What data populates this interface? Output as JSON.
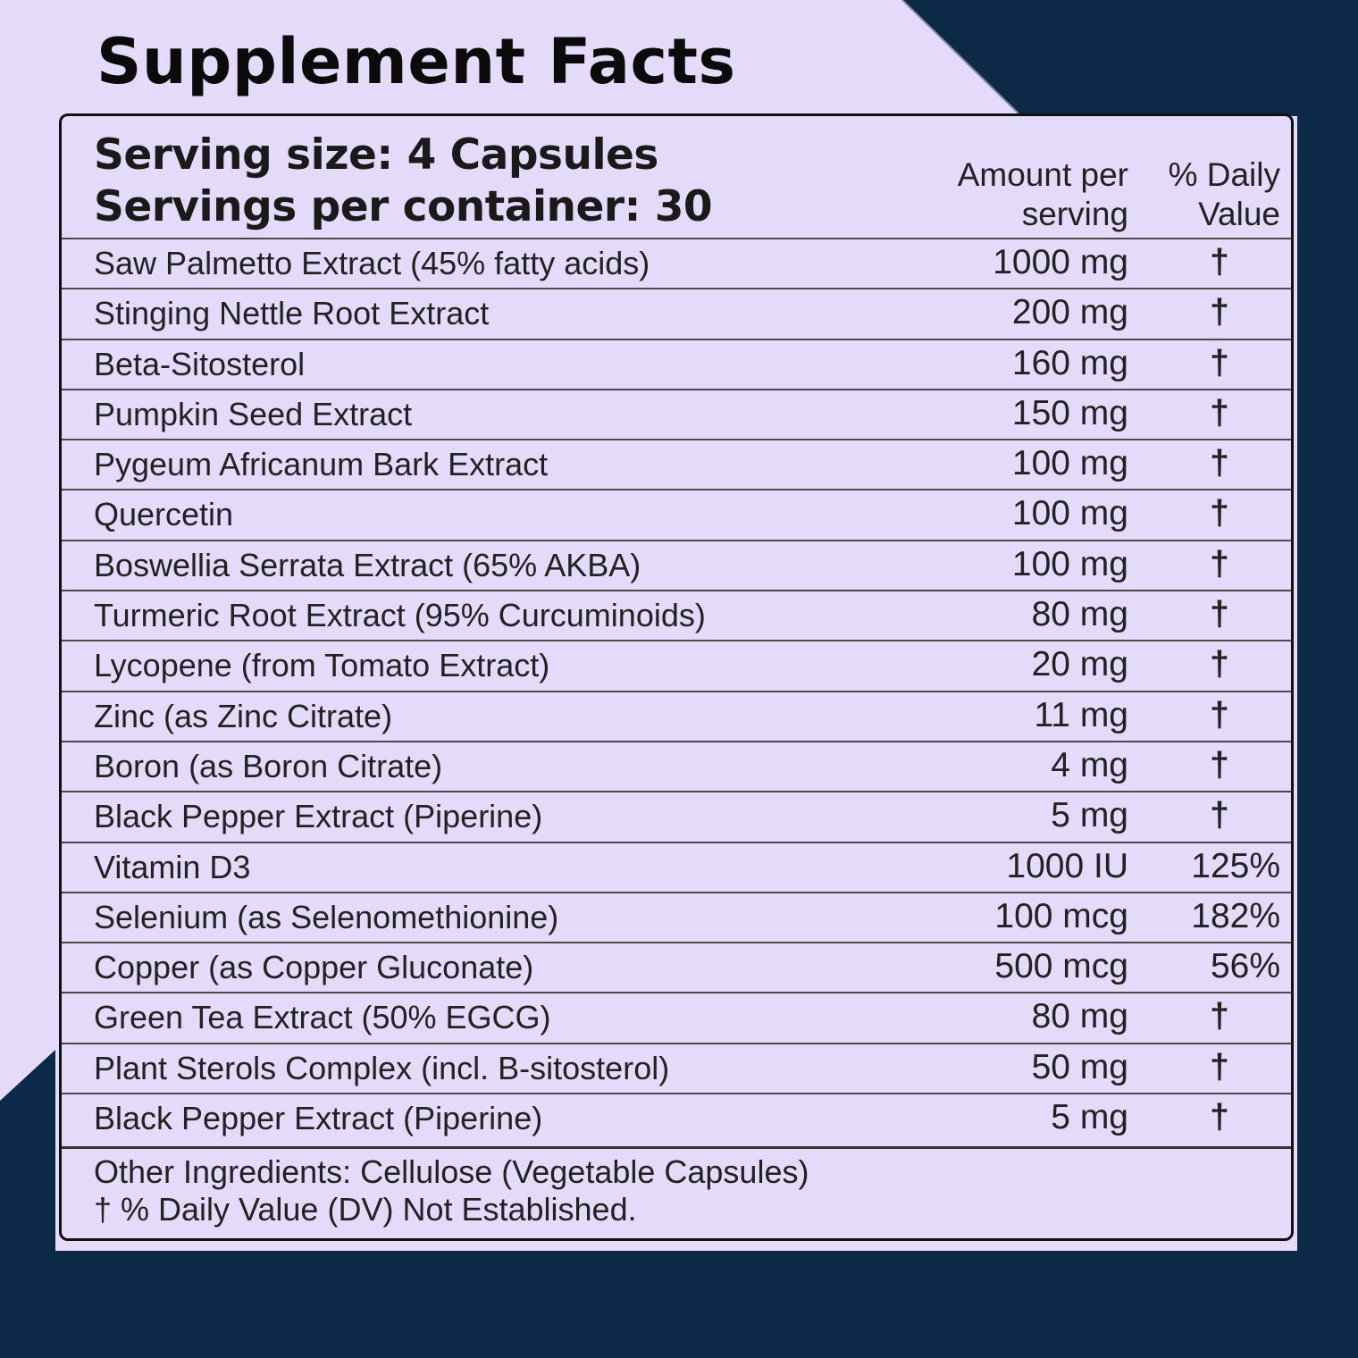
{
  "title": "Supplement Facts",
  "serving_size": "Serving size: 4 Capsules",
  "servings_per_container": "Servings per container: 30",
  "columns": {
    "amount_line1": "Amount per",
    "amount_line2": "serving",
    "dv_line1": "% Daily",
    "dv_line2": "Value"
  },
  "rows": [
    {
      "name": "Saw Palmetto Extract (45% fatty acids)",
      "amount": "1000 mg",
      "dv": "†"
    },
    {
      "name": "Stinging Nettle Root Extract",
      "amount": "200 mg",
      "dv": "†"
    },
    {
      "name": "Beta-Sitosterol",
      "amount": "160 mg",
      "dv": "†"
    },
    {
      "name": "Pumpkin Seed Extract",
      "amount": "150 mg",
      "dv": "†"
    },
    {
      "name": "Pygeum Africanum Bark Extract",
      "amount": "100 mg",
      "dv": "†"
    },
    {
      "name": "Quercetin",
      "amount": "100 mg",
      "dv": "†"
    },
    {
      "name": "Boswellia Serrata Extract (65% AKBA)",
      "amount": "100 mg",
      "dv": "†"
    },
    {
      "name": "Turmeric Root Extract (95% Curcuminoids)",
      "amount": "80 mg",
      "dv": "†"
    },
    {
      "name": "Lycopene (from Tomato Extract)",
      "amount": "20 mg",
      "dv": "†"
    },
    {
      "name": "Zinc (as Zinc Citrate)",
      "amount": "11 mg",
      "dv": "†"
    },
    {
      "name": "Boron (as Boron Citrate)",
      "amount": "4 mg",
      "dv": "†"
    },
    {
      "name": "Black Pepper Extract (Piperine)",
      "amount": "5 mg",
      "dv": "†"
    },
    {
      "name": "Vitamin D3",
      "amount": "1000 IU",
      "dv": "125%"
    },
    {
      "name": "Selenium (as Selenomethionine)",
      "amount": "100 mcg",
      "dv": "182%"
    },
    {
      "name": "Copper (as Copper Gluconate)",
      "amount": "500 mcg",
      "dv": "56%"
    },
    {
      "name": "Green Tea Extract (50% EGCG)",
      "amount": "80 mg",
      "dv": "†"
    },
    {
      "name": "Plant Sterols Complex (incl. B-sitosterol)",
      "amount": "50 mg",
      "dv": "†"
    },
    {
      "name": "Black Pepper Extract (Piperine)",
      "amount": "5 mg",
      "dv": "†"
    }
  ],
  "footer": {
    "other_ingredients": "Other Ingredients: Cellulose (Vegetable Capsules)",
    "dagger_note": "† % Daily Value (DV) Not Established."
  },
  "colors": {
    "background_lavender": "#e4dbfb",
    "background_navy": "#0c2a47",
    "text": "#1a1a1a"
  }
}
